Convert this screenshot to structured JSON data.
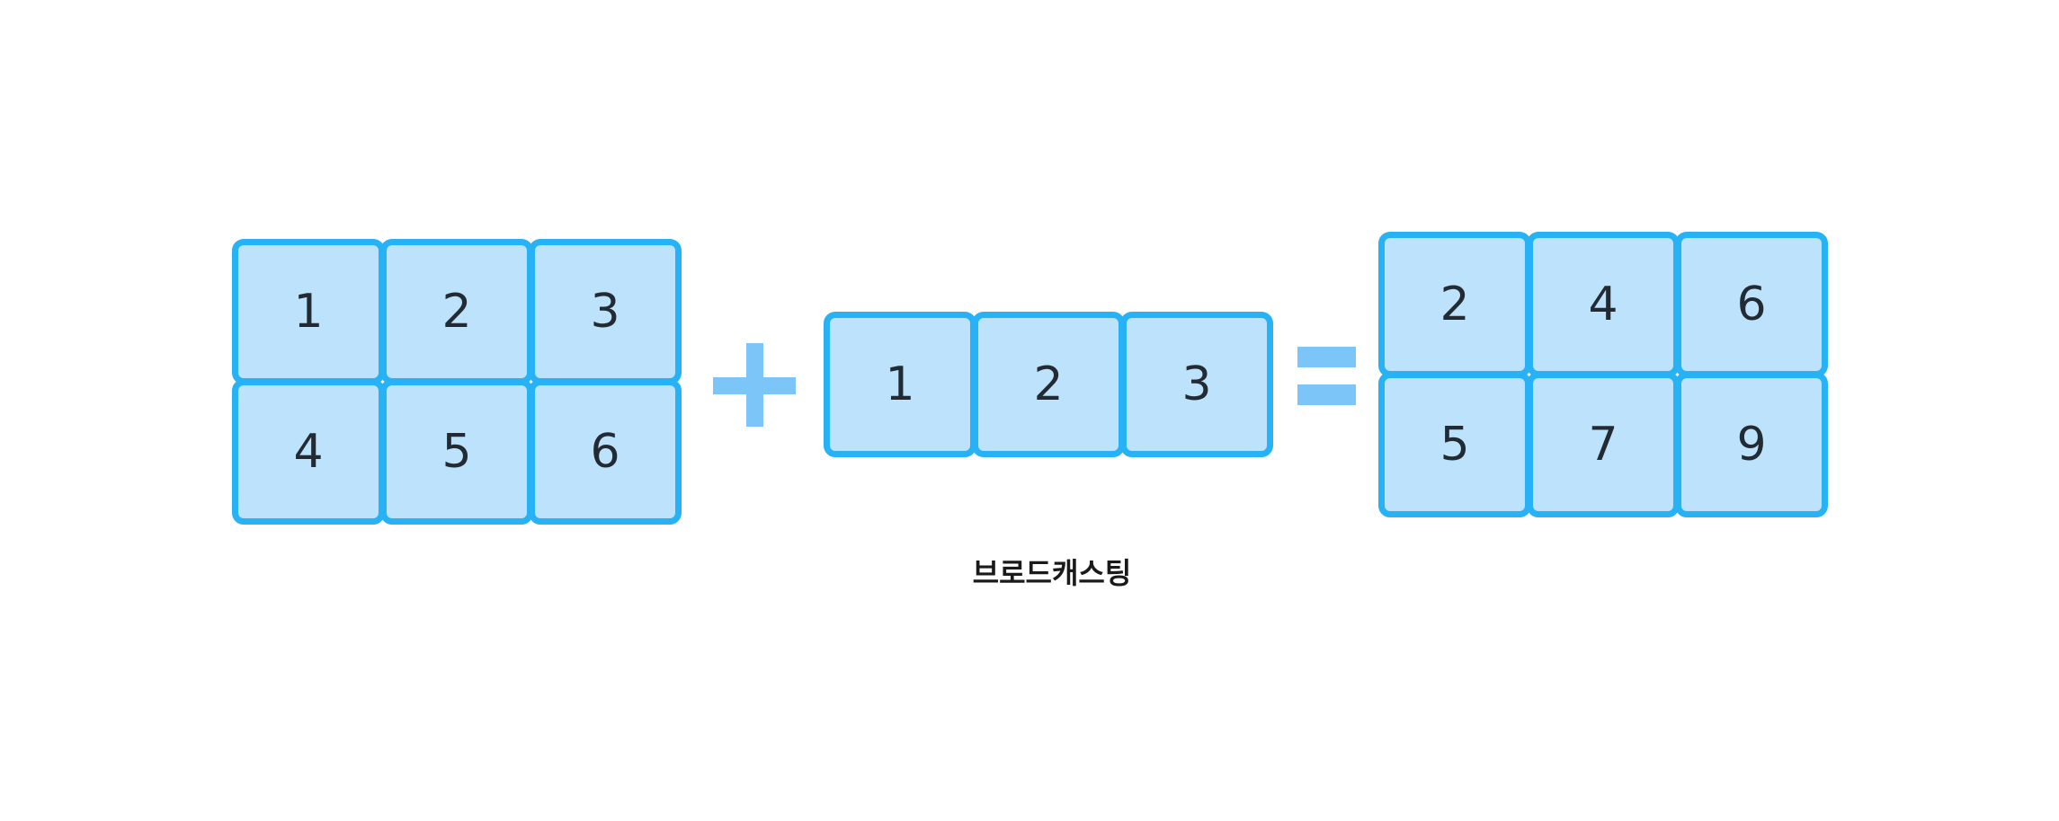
{
  "colors": {
    "cell_fill": "#bde3fc",
    "cell_border": "#27b2f5",
    "operator": "#7cc5f8",
    "text": "#222b33"
  },
  "left_matrix": {
    "rows": [
      [
        1,
        2,
        3
      ],
      [
        4,
        5,
        6
      ]
    ]
  },
  "operator_plus": "+",
  "middle_vector": {
    "rows": [
      [
        1,
        2,
        3
      ]
    ]
  },
  "operator_equals": "=",
  "result_matrix": {
    "rows": [
      [
        2,
        4,
        6
      ],
      [
        5,
        7,
        9
      ]
    ]
  },
  "caption": "브로드캐스팅"
}
